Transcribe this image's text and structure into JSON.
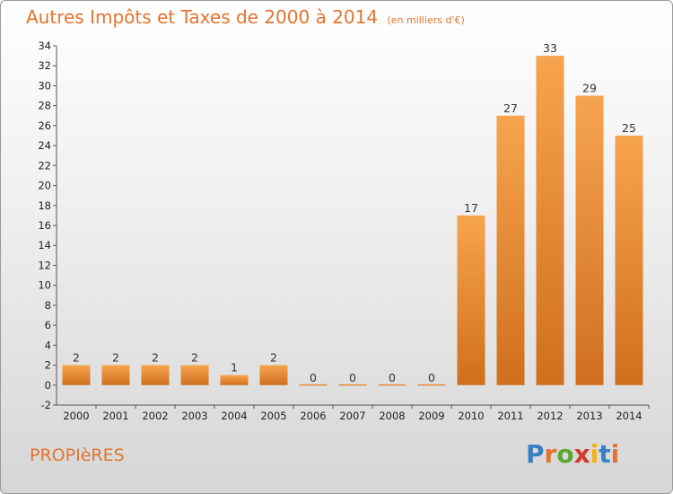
{
  "header": {
    "title": "Autres Impôts et Taxes de 2000 à 2014",
    "unit": "(en milliers d'€)"
  },
  "footer": {
    "place": "PROPIèRES",
    "logo": "Proxiti"
  },
  "colors": {
    "accent": "#e2742e",
    "bar_light": "#f7a44e",
    "bar_dark": "#d06f1e"
  },
  "chart_data": {
    "type": "bar",
    "title": "Autres Impôts et Taxes de 2000 à 2014",
    "subtitle": "(en milliers d'€)",
    "categories": [
      "2000",
      "2001",
      "2002",
      "2003",
      "2004",
      "2005",
      "2006",
      "2007",
      "2008",
      "2009",
      "2010",
      "2011",
      "2012",
      "2013",
      "2014"
    ],
    "values": [
      2,
      2,
      2,
      2,
      1,
      2,
      0,
      0,
      0,
      0,
      17,
      27,
      33,
      29,
      25
    ],
    "ylim": [
      -2,
      34
    ],
    "yticks": [
      -2,
      0,
      2,
      4,
      6,
      8,
      10,
      12,
      14,
      16,
      18,
      20,
      22,
      24,
      26,
      28,
      30,
      32,
      34
    ],
    "grid": false
  }
}
